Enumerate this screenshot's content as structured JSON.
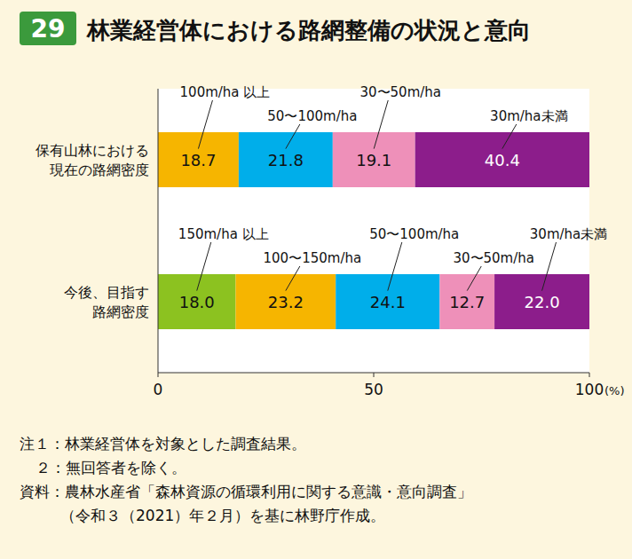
{
  "chart_data": {
    "type": "bar",
    "orientation": "horizontal",
    "stacked": true,
    "data_labels": true,
    "figure_number": "29",
    "title": "林業経営体における路網整備の状況と意向",
    "categories": [
      "保有山林における\n現在の路網密度",
      "今後、目指す\n路網密度"
    ],
    "series": [
      {
        "name": "150m/ha 以上",
        "color": "#8cc220",
        "values": [
          null,
          18.0
        ],
        "value_labels": [
          null,
          "18.0"
        ]
      },
      {
        "name": "100m/ha 以上",
        "color": "#f6b500",
        "values": [
          18.7,
          null
        ]
      },
      {
        "name": "100〜150m/ha",
        "color": "#f6b500",
        "values": [
          null,
          23.2
        ]
      },
      {
        "name": "50〜100m/ha",
        "color": "#00aeea",
        "values": [
          21.8,
          24.1
        ]
      },
      {
        "name": "30〜50m/ha",
        "color": "#ee90b9",
        "values": [
          19.1,
          12.7
        ]
      },
      {
        "name": "30m/ha未満",
        "color": "#8c1d8b",
        "values": [
          40.4,
          22.0
        ],
        "value_labels": [
          "40.4",
          "22.0"
        ]
      }
    ],
    "xlim": [
      0,
      100
    ],
    "xticks": [
      0,
      50,
      100
    ],
    "x_label": "(%)",
    "notes": [
      "注１：林業経営体を対象とした調査結果。",
      "２：無回答者を除く。"
    ],
    "source": [
      "資料：農林水産省「森林資源の循環利用に関する意識・意向調査」",
      "（令和３（2021）年２月）を基に林野庁作成。"
    ]
  }
}
